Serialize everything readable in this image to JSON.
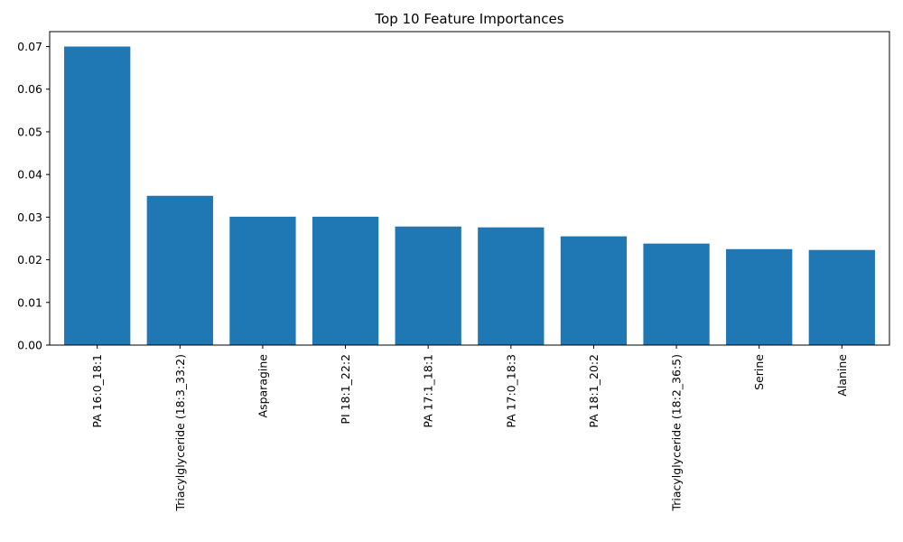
{
  "chart_data": {
    "type": "bar",
    "title": "Top 10 Feature Importances",
    "xlabel": "",
    "ylabel": "",
    "categories": [
      "PA 16:0_18:1",
      "Triacylglyceride (18:3_33:2)",
      "Asparagine",
      "PI 18:1_22:2",
      "PA 17:1_18:1",
      "PA 17:0_18:3",
      "PA 18:1_20:2",
      "Triacylglyceride (18:2_36:5)",
      "Serine",
      "Alanine"
    ],
    "values": [
      0.07,
      0.035,
      0.0301,
      0.0301,
      0.0278,
      0.0276,
      0.0255,
      0.0238,
      0.0225,
      0.0223
    ],
    "ylim": [
      0,
      0.0735
    ],
    "yticks": [
      0.0,
      0.01,
      0.02,
      0.03,
      0.04,
      0.05,
      0.06,
      0.07
    ],
    "ytick_labels": [
      "0.00",
      "0.01",
      "0.02",
      "0.03",
      "0.04",
      "0.05",
      "0.06",
      "0.07"
    ],
    "grid": false,
    "bar_color": "#1f77b4"
  }
}
